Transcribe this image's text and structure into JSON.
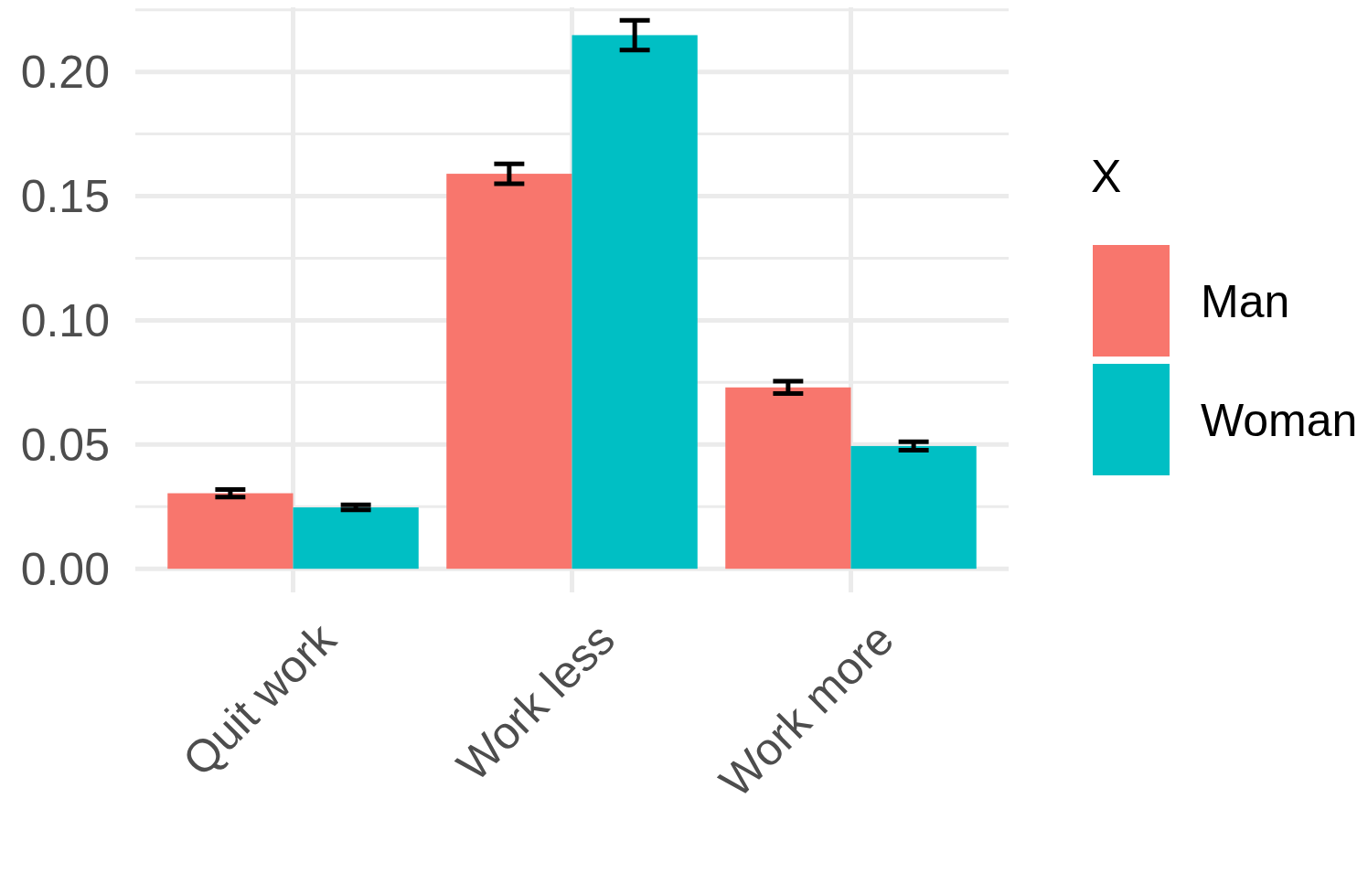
{
  "chart_data": {
    "type": "bar",
    "categories": [
      "Quit work",
      "Work less",
      "Work more"
    ],
    "series": [
      {
        "name": "Man",
        "color": "#f8766d",
        "values": [
          0.0304,
          0.159,
          0.073
        ],
        "errors": [
          0.0015,
          0.004,
          0.0025
        ]
      },
      {
        "name": "Woman",
        "color": "#00bfc4",
        "values": [
          0.0247,
          0.2148,
          0.0494
        ],
        "errors": [
          0.001,
          0.006,
          0.0017
        ]
      }
    ],
    "legend_title": "X",
    "legend": "right",
    "grid": true,
    "ylim": [
      -0.0095,
      0.226
    ],
    "yticks": [
      {
        "value": 0,
        "label": "0.00"
      },
      {
        "value": 0.05,
        "label": "0.05"
      },
      {
        "value": 0.1,
        "label": "0.10"
      },
      {
        "value": 0.15,
        "label": "0.15"
      },
      {
        "value": 0.2,
        "label": "0.20"
      }
    ]
  }
}
